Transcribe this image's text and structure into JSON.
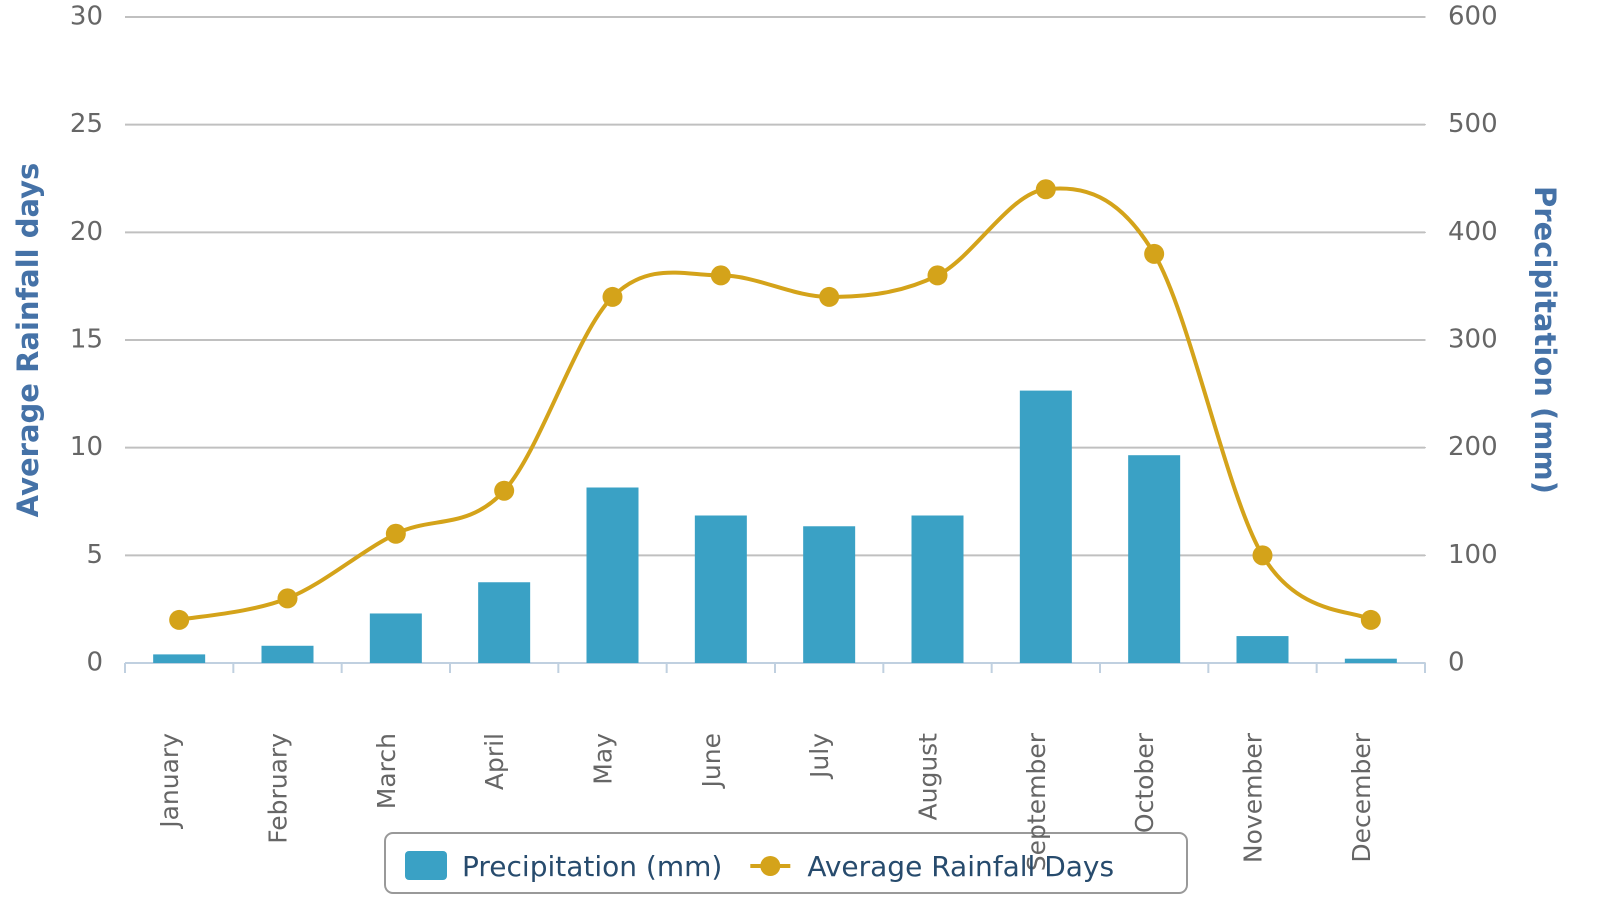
{
  "chart_data": {
    "type": "bar",
    "categories": [
      "January",
      "February",
      "March",
      "April",
      "May",
      "June",
      "July",
      "August",
      "September",
      "October",
      "November",
      "December"
    ],
    "series": [
      {
        "name": "Precipitation (mm)",
        "type": "bar",
        "axis": "y2",
        "color": "#3aa1c5",
        "values": [
          8,
          16,
          46,
          75,
          163,
          137,
          127,
          137,
          253,
          193,
          25,
          4
        ]
      },
      {
        "name": "Average Rainfall Days",
        "type": "line",
        "axis": "y",
        "color": "#d4a31a",
        "values": [
          2,
          3,
          6,
          8,
          17,
          18,
          17,
          18,
          22,
          19,
          5,
          2
        ]
      }
    ],
    "ylabel": "Average Rainfall days",
    "y2label": "Precipitation (mm)",
    "ylim": [
      0,
      30
    ],
    "yticks": [
      0,
      5,
      10,
      15,
      20,
      25,
      30
    ],
    "y2lim": [
      0,
      600
    ],
    "y2ticks": [
      0,
      100,
      200,
      300,
      400,
      500,
      600
    ],
    "grid": true,
    "legend": "bottom"
  }
}
